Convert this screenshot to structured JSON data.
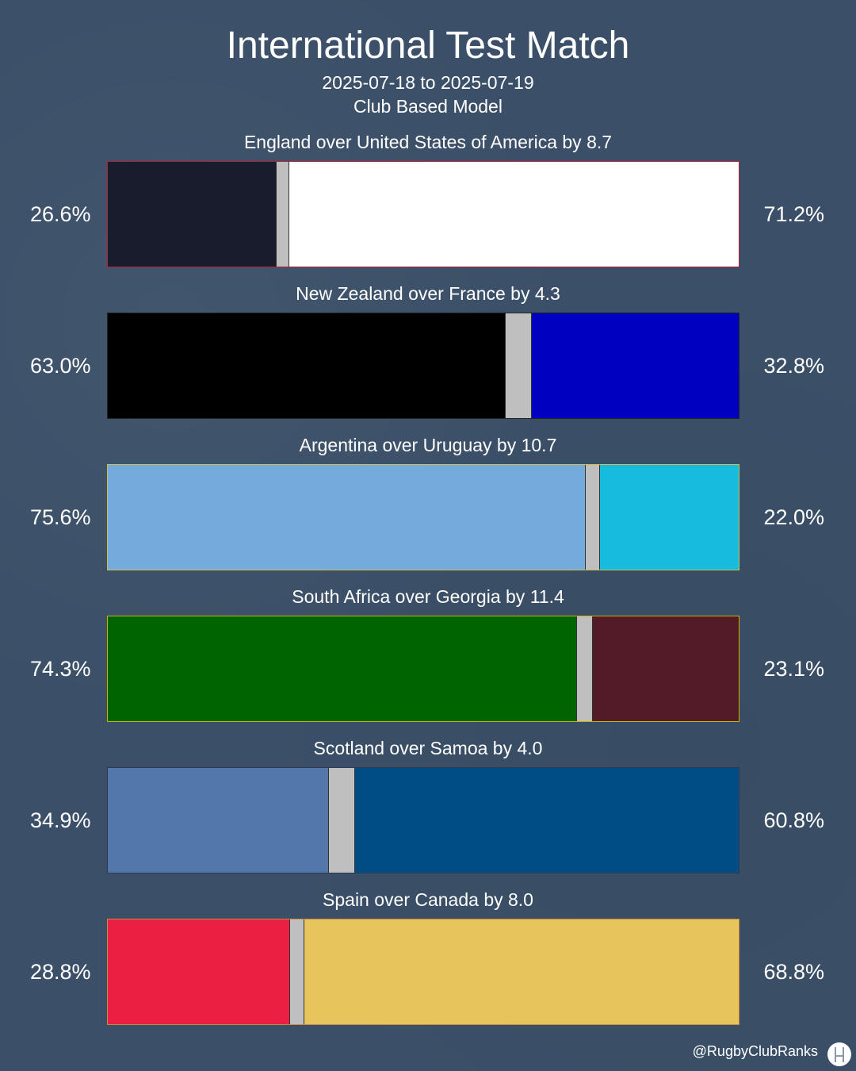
{
  "header": {
    "title": "International Test Match",
    "date_range": "2025-07-18 to 2025-07-19",
    "model": "Club Based Model"
  },
  "chart_data": {
    "type": "bar",
    "orientation": "horizontal-stacked",
    "matches": [
      {
        "label": "England over United States of America by 8.7",
        "home_pct": 26.6,
        "away_pct": 71.2,
        "home_label": "26.6%",
        "away_label": "71.2%",
        "home_color": "#181c2d",
        "away_color": "#ffffff",
        "border_color": "#b22234"
      },
      {
        "label": "New Zealand over France by 4.3",
        "home_pct": 63.0,
        "away_pct": 32.8,
        "home_label": "63.0%",
        "away_label": "32.8%",
        "home_color": "#000000",
        "away_color": "#0000c0",
        "border_color": "#222222"
      },
      {
        "label": "Argentina over Uruguay by 10.7",
        "home_pct": 75.6,
        "away_pct": 22.0,
        "home_label": "75.6%",
        "away_label": "22.0%",
        "home_color": "#75aadd",
        "away_color": "#17bbdd",
        "border_color": "#c8c050"
      },
      {
        "label": "South Africa over Georgia by 11.4",
        "home_pct": 74.3,
        "away_pct": 23.1,
        "home_label": "74.3%",
        "away_label": "23.1%",
        "home_color": "#006400",
        "away_color": "#531a28",
        "border_color": "#c8b400"
      },
      {
        "label": "Scotland over Samoa by 4.0",
        "home_pct": 34.9,
        "away_pct": 60.8,
        "home_label": "34.9%",
        "away_label": "60.8%",
        "home_color": "#5477a9",
        "away_color": "#004c84",
        "border_color": "#2a3a55"
      },
      {
        "label": "Spain over Canada by 8.0",
        "home_pct": 28.8,
        "away_pct": 68.8,
        "home_label": "28.8%",
        "away_label": "68.8%",
        "home_color": "#ea1f42",
        "away_color": "#e8c55c",
        "border_color": "#c88a40"
      }
    ],
    "draw_color": "#bfbfbf",
    "xlim": [
      0,
      100
    ]
  },
  "footer": {
    "handle": "@RugbyClubRanks",
    "logo_icon": "rugby-posts-icon"
  }
}
